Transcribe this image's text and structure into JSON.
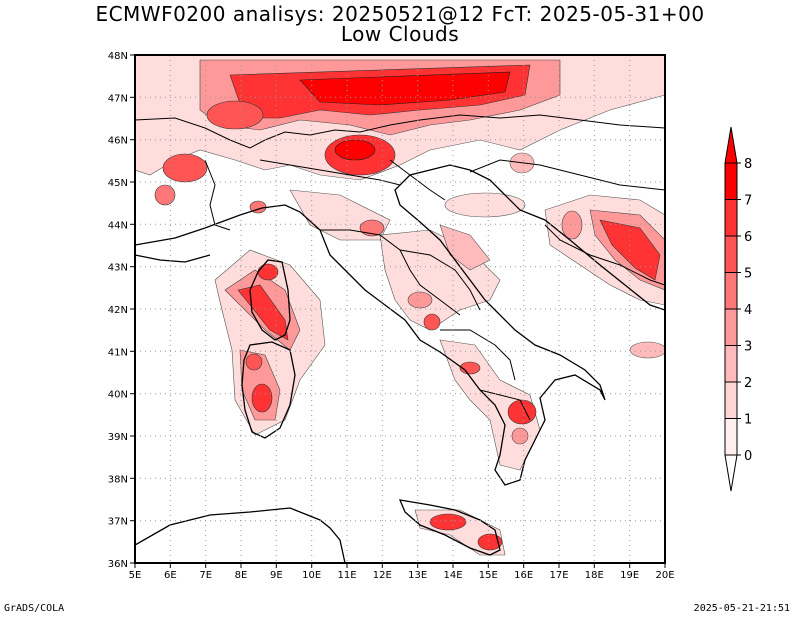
{
  "title_line1": "ECMWF0200 analisys: 20250521@12 FcT: 2025-05-31+00",
  "title_line2": "Low Clouds",
  "footer_left": "GrADS/COLA",
  "footer_right": "2025-05-21-21:51",
  "map": {
    "lon_labels": [
      "5E",
      "6E",
      "7E",
      "8E",
      "9E",
      "10E",
      "11E",
      "12E",
      "13E",
      "14E",
      "15E",
      "16E",
      "17E",
      "18E",
      "19E",
      "20E"
    ],
    "lat_labels": [
      "48N",
      "47N",
      "46N",
      "45N",
      "44N",
      "43N",
      "42N",
      "41N",
      "40N",
      "39N",
      "38N",
      "37N",
      "36N"
    ],
    "grid": "dotted",
    "projection": "lat-lon"
  },
  "colorbar": {
    "labels": [
      "8",
      "7",
      "6",
      "5",
      "4",
      "3",
      "2",
      "1",
      "0"
    ],
    "colors": [
      "#ff0000",
      "#ff3333",
      "#ff5555",
      "#ff7777",
      "#ff9999",
      "#ffbbbb",
      "#ffd5d5",
      "#ffeeee"
    ]
  }
}
